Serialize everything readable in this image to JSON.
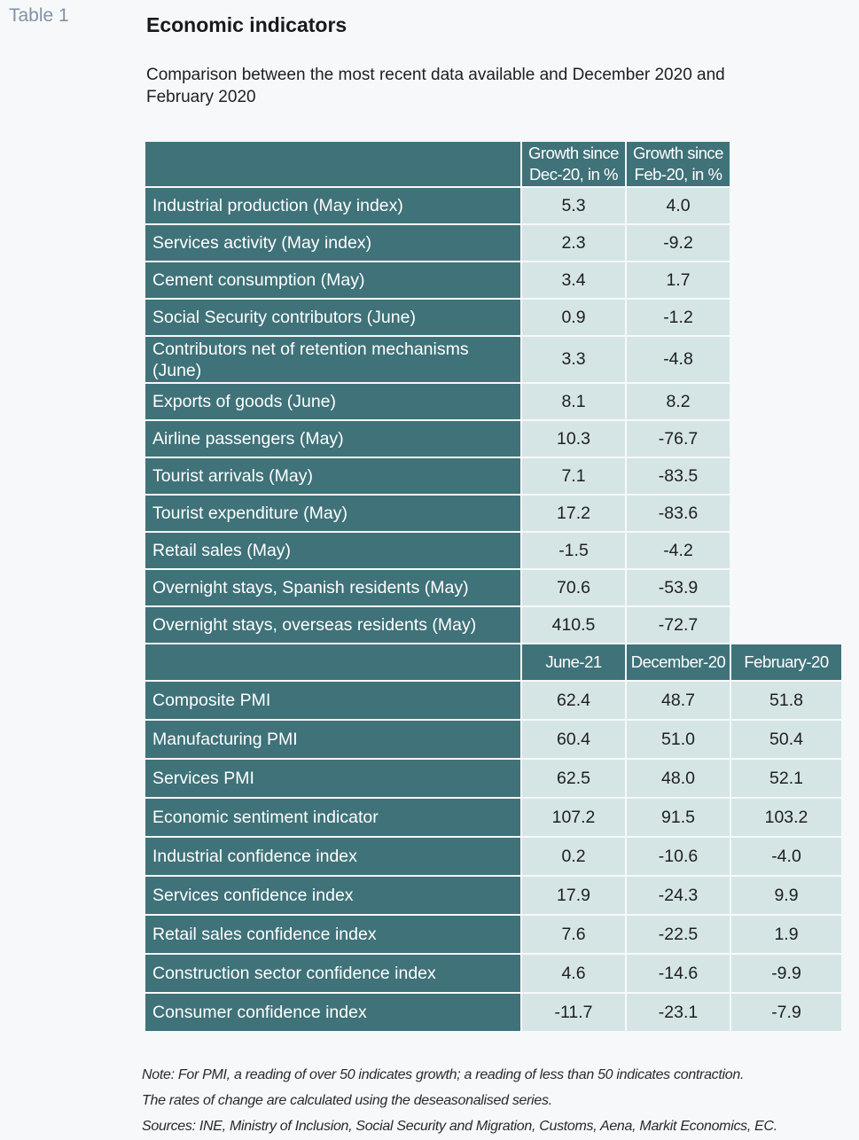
{
  "table_label": "Table 1",
  "title": "Economic indicators",
  "subtitle": "Comparison between the most recent data available and December 2020 and February 2020",
  "growth_section": {
    "headers": [
      "Growth since Dec-20, in %",
      "Growth since Feb-20, in %"
    ],
    "rows": [
      {
        "label": "Industrial production (May index)",
        "values": [
          "5.3",
          "4.0"
        ]
      },
      {
        "label": "Services activity (May index)",
        "values": [
          "2.3",
          "-9.2"
        ]
      },
      {
        "label": "Cement consumption (May)",
        "values": [
          "3.4",
          "1.7"
        ]
      },
      {
        "label": "Social Security contributors (June)",
        "values": [
          "0.9",
          "-1.2"
        ]
      },
      {
        "label": "Contributors net of retention mechanisms (June)",
        "values": [
          "3.3",
          "-4.8"
        ]
      },
      {
        "label": "Exports of goods (June)",
        "values": [
          "8.1",
          "8.2"
        ]
      },
      {
        "label": "Airline passengers (May)",
        "values": [
          "10.3",
          "-76.7"
        ]
      },
      {
        "label": "Tourist arrivals (May)",
        "values": [
          "7.1",
          "-83.5"
        ]
      },
      {
        "label": "Tourist expenditure (May)",
        "values": [
          "17.2",
          "-83.6"
        ]
      },
      {
        "label": "Retail sales (May)",
        "values": [
          "-1.5",
          "-4.2"
        ]
      },
      {
        "label": "Overnight stays, Spanish residents (May)",
        "values": [
          "70.6",
          "-53.9"
        ]
      },
      {
        "label": "Overnight stays, overseas residents (May)",
        "values": [
          "410.5",
          "-72.7"
        ]
      }
    ]
  },
  "level_section": {
    "headers": [
      "June-21",
      "December-20",
      "February-20"
    ],
    "rows": [
      {
        "label": "Composite PMI",
        "values": [
          "62.4",
          "48.7",
          "51.8"
        ]
      },
      {
        "label": "Manufacturing PMI",
        "values": [
          "60.4",
          "51.0",
          "50.4"
        ]
      },
      {
        "label": "Services PMI",
        "values": [
          "62.5",
          "48.0",
          "52.1"
        ]
      },
      {
        "label": "Economic sentiment indicator",
        "values": [
          "107.2",
          "91.5",
          "103.2"
        ]
      },
      {
        "label": "Industrial confidence index",
        "values": [
          "0.2",
          "-10.6",
          "-4.0"
        ]
      },
      {
        "label": "Services confidence index",
        "values": [
          "17.9",
          "-24.3",
          "9.9"
        ]
      },
      {
        "label": "Retail sales confidence index",
        "values": [
          "7.6",
          "-22.5",
          "1.9"
        ]
      },
      {
        "label": "Construction sector confidence index",
        "values": [
          "4.6",
          "-14.6",
          "-9.9"
        ]
      },
      {
        "label": "Consumer confidence index",
        "values": [
          "-11.7",
          "-23.1",
          "-7.9"
        ]
      }
    ]
  },
  "notes": [
    "Note: For PMI, a reading of over 50 indicates growth; a reading of less than 50 indicates contraction.",
    "The rates of change are calculated using the deseasonalised series.",
    "Sources: INE, Ministry of Inclusion, Social Security and Migration, Customs, Aena, Markit Economics, EC."
  ],
  "colors": {
    "header_bg": "#3f7279",
    "value_bg": "#d5e5e6",
    "table_label": "#7f93a6"
  }
}
